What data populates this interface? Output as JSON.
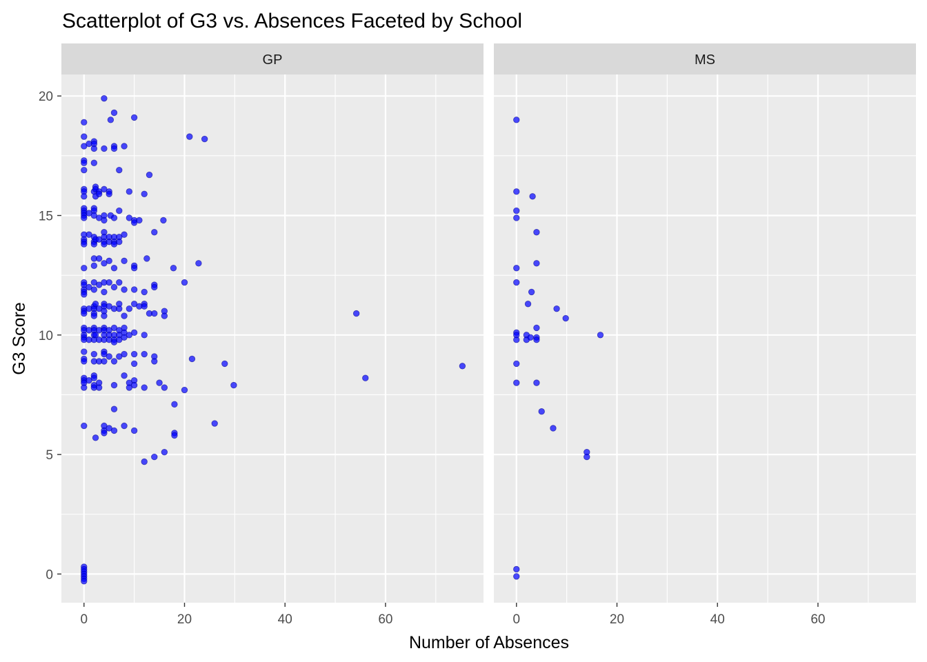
{
  "chart_data": {
    "type": "scatter",
    "title": "Scatterplot of G3 vs. Absences Faceted by School",
    "xlabel": "Number of Absences",
    "ylabel": "G3 Score",
    "xlim": [
      -4.5,
      79.5
    ],
    "ylim": [
      -1.2,
      20.9
    ],
    "x_ticks": [
      0,
      20,
      40,
      60
    ],
    "y_ticks": [
      0,
      5,
      10,
      15,
      20
    ],
    "grid": true,
    "point_color": "#0000FF",
    "point_opacity": 0.7,
    "facets": [
      {
        "name": "GP",
        "points": [
          [
            0,
            18.9
          ],
          [
            0,
            18.3
          ],
          [
            0,
            17.9
          ],
          [
            0,
            17.3
          ],
          [
            0,
            17.2
          ],
          [
            0,
            16.9
          ],
          [
            0,
            16.1
          ],
          [
            0,
            16.0
          ],
          [
            0,
            15.8
          ],
          [
            0,
            15.3
          ],
          [
            0,
            15.2
          ],
          [
            0,
            15.1
          ],
          [
            0,
            15.0
          ],
          [
            0,
            14.9
          ],
          [
            0,
            14.2
          ],
          [
            0,
            14.0
          ],
          [
            0,
            13.9
          ],
          [
            0,
            13.8
          ],
          [
            0,
            12.8
          ],
          [
            0,
            12.2
          ],
          [
            0,
            12.1
          ],
          [
            0,
            11.9
          ],
          [
            0,
            11.8
          ],
          [
            0,
            11.7
          ],
          [
            0,
            11.1
          ],
          [
            0,
            11.0
          ],
          [
            0,
            10.9
          ],
          [
            0,
            10.3
          ],
          [
            0,
            10.2
          ],
          [
            0,
            10.0
          ],
          [
            0,
            9.9
          ],
          [
            0,
            9.8
          ],
          [
            0,
            9.3
          ],
          [
            0,
            9.0
          ],
          [
            0,
            8.9
          ],
          [
            0,
            8.2
          ],
          [
            0,
            8.1
          ],
          [
            0,
            8.0
          ],
          [
            0,
            7.8
          ],
          [
            0,
            6.2
          ],
          [
            0,
            0.3
          ],
          [
            0,
            0.2
          ],
          [
            0,
            0.1
          ],
          [
            0,
            0.0
          ],
          [
            0,
            -0.1
          ],
          [
            0,
            -0.2
          ],
          [
            0,
            -0.3
          ],
          [
            1,
            18.0
          ],
          [
            1,
            15.1
          ],
          [
            1,
            14.2
          ],
          [
            1,
            12.0
          ],
          [
            1,
            11.1
          ],
          [
            1,
            10.2
          ],
          [
            1,
            9.8
          ],
          [
            1,
            8.1
          ],
          [
            2,
            18.1
          ],
          [
            2,
            18.0
          ],
          [
            2,
            17.8
          ],
          [
            2,
            17.2
          ],
          [
            2,
            16.0
          ],
          [
            2,
            15.3
          ],
          [
            2,
            15.2
          ],
          [
            2,
            15.0
          ],
          [
            2,
            14.1
          ],
          [
            2,
            13.9
          ],
          [
            2,
            13.8
          ],
          [
            2,
            13.2
          ],
          [
            2,
            12.9
          ],
          [
            2,
            12.2
          ],
          [
            2,
            11.9
          ],
          [
            2,
            11.2
          ],
          [
            2,
            11.1
          ],
          [
            2,
            10.9
          ],
          [
            2,
            10.8
          ],
          [
            2,
            10.3
          ],
          [
            2,
            10.2
          ],
          [
            2,
            10.0
          ],
          [
            2,
            9.8
          ],
          [
            2,
            9.2
          ],
          [
            2,
            8.9
          ],
          [
            2,
            8.3
          ],
          [
            2,
            8.2
          ],
          [
            2,
            7.9
          ],
          [
            2,
            7.8
          ],
          [
            2.3,
            16.2
          ],
          [
            2.3,
            16.1
          ],
          [
            2.3,
            15.8
          ],
          [
            2.3,
            14.0
          ],
          [
            2.3,
            11.3
          ],
          [
            2.3,
            10.0
          ],
          [
            2.3,
            5.7
          ],
          [
            3,
            16.0
          ],
          [
            3,
            15.9
          ],
          [
            3,
            14.9
          ],
          [
            3,
            14.0
          ],
          [
            3,
            13.2
          ],
          [
            3,
            12.1
          ],
          [
            3,
            11.1
          ],
          [
            3,
            10.2
          ],
          [
            3,
            9.8
          ],
          [
            3,
            8.9
          ],
          [
            3,
            8.0
          ],
          [
            3,
            7.8
          ],
          [
            4,
            19.9
          ],
          [
            4,
            17.8
          ],
          [
            4,
            16.1
          ],
          [
            4,
            15.0
          ],
          [
            4,
            14.8
          ],
          [
            4,
            14.3
          ],
          [
            4,
            14.1
          ],
          [
            4,
            13.9
          ],
          [
            4,
            13.8
          ],
          [
            4,
            13.0
          ],
          [
            4,
            12.2
          ],
          [
            4,
            11.8
          ],
          [
            4,
            11.3
          ],
          [
            4,
            11.2
          ],
          [
            4,
            11.0
          ],
          [
            4,
            10.8
          ],
          [
            4,
            10.3
          ],
          [
            4,
            10.2
          ],
          [
            4,
            10.0
          ],
          [
            4,
            9.8
          ],
          [
            4,
            9.3
          ],
          [
            4,
            9.2
          ],
          [
            4,
            8.9
          ],
          [
            4,
            6.2
          ],
          [
            4,
            6.0
          ],
          [
            4,
            5.9
          ],
          [
            5,
            16.0
          ],
          [
            5,
            15.9
          ],
          [
            5,
            14.1
          ],
          [
            5,
            13.9
          ],
          [
            5,
            13.1
          ],
          [
            5,
            12.2
          ],
          [
            5,
            11.2
          ],
          [
            5,
            10.2
          ],
          [
            5,
            10.0
          ],
          [
            5,
            9.8
          ],
          [
            5,
            9.1
          ],
          [
            5,
            6.1
          ],
          [
            5.3,
            19.0
          ],
          [
            5.3,
            15.0
          ],
          [
            6,
            19.3
          ],
          [
            6,
            17.9
          ],
          [
            6,
            17.8
          ],
          [
            6,
            14.9
          ],
          [
            6,
            14.1
          ],
          [
            6,
            13.9
          ],
          [
            6,
            13.8
          ],
          [
            6,
            12.8
          ],
          [
            6,
            12.0
          ],
          [
            6,
            11.1
          ],
          [
            6,
            10.3
          ],
          [
            6,
            10.0
          ],
          [
            6,
            9.8
          ],
          [
            6,
            9.7
          ],
          [
            6,
            8.9
          ],
          [
            6,
            7.9
          ],
          [
            6,
            6.9
          ],
          [
            6,
            6.0
          ],
          [
            7,
            16.9
          ],
          [
            7,
            15.2
          ],
          [
            7,
            14.1
          ],
          [
            7,
            13.9
          ],
          [
            7,
            12.2
          ],
          [
            7,
            11.3
          ],
          [
            7,
            11.1
          ],
          [
            7,
            10.2
          ],
          [
            7,
            10.0
          ],
          [
            7,
            9.8
          ],
          [
            7,
            9.1
          ],
          [
            8,
            17.9
          ],
          [
            8,
            14.2
          ],
          [
            8,
            13.1
          ],
          [
            8,
            11.9
          ],
          [
            8,
            10.8
          ],
          [
            8,
            10.3
          ],
          [
            8,
            10.1
          ],
          [
            8,
            9.9
          ],
          [
            8,
            9.2
          ],
          [
            8,
            8.3
          ],
          [
            8,
            6.2
          ],
          [
            9,
            16.0
          ],
          [
            9,
            14.9
          ],
          [
            9,
            11.1
          ],
          [
            9,
            10.0
          ],
          [
            9,
            8.0
          ],
          [
            9,
            7.8
          ],
          [
            10,
            19.1
          ],
          [
            10,
            14.8
          ],
          [
            10,
            14.7
          ],
          [
            10,
            12.9
          ],
          [
            10,
            12.8
          ],
          [
            10,
            11.9
          ],
          [
            10,
            11.3
          ],
          [
            10,
            10.1
          ],
          [
            10,
            9.2
          ],
          [
            10,
            8.8
          ],
          [
            10,
            8.1
          ],
          [
            10,
            7.9
          ],
          [
            10,
            6.0
          ],
          [
            11,
            14.8
          ],
          [
            11,
            11.2
          ],
          [
            12,
            15.9
          ],
          [
            12,
            11.8
          ],
          [
            12,
            11.3
          ],
          [
            12,
            11.2
          ],
          [
            12,
            10.0
          ],
          [
            12,
            9.2
          ],
          [
            12,
            7.8
          ],
          [
            12,
            4.7
          ],
          [
            12.5,
            13.2
          ],
          [
            13,
            16.7
          ],
          [
            13,
            10.9
          ],
          [
            14,
            14.3
          ],
          [
            14,
            12.1
          ],
          [
            14,
            12.0
          ],
          [
            14,
            10.9
          ],
          [
            14,
            9.1
          ],
          [
            14,
            8.9
          ],
          [
            14,
            4.9
          ],
          [
            15,
            8.0
          ],
          [
            15.8,
            14.8
          ],
          [
            16,
            11.0
          ],
          [
            16,
            10.8
          ],
          [
            16,
            7.8
          ],
          [
            16,
            5.1
          ],
          [
            17.8,
            12.8
          ],
          [
            18,
            7.1
          ],
          [
            18,
            5.9
          ],
          [
            18,
            5.8
          ],
          [
            20,
            12.2
          ],
          [
            20,
            7.7
          ],
          [
            21,
            18.3
          ],
          [
            21.5,
            9.0
          ],
          [
            22.8,
            13.0
          ],
          [
            24,
            18.2
          ],
          [
            26,
            6.3
          ],
          [
            28,
            8.8
          ],
          [
            29.8,
            7.9
          ],
          [
            54.2,
            10.9
          ],
          [
            56,
            8.2
          ],
          [
            75.3,
            8.7
          ]
        ]
      },
      {
        "name": "MS",
        "points": [
          [
            0,
            19.0
          ],
          [
            0,
            16.0
          ],
          [
            0,
            15.2
          ],
          [
            0,
            14.9
          ],
          [
            0,
            12.8
          ],
          [
            0,
            12.2
          ],
          [
            0,
            10.1
          ],
          [
            0,
            10.0
          ],
          [
            0,
            9.8
          ],
          [
            0,
            8.8
          ],
          [
            0,
            8.0
          ],
          [
            0,
            0.2
          ],
          [
            0,
            -0.1
          ],
          [
            2,
            10.0
          ],
          [
            2,
            9.8
          ],
          [
            2.3,
            11.3
          ],
          [
            2.8,
            9.9
          ],
          [
            3,
            11.8
          ],
          [
            3.2,
            15.8
          ],
          [
            4,
            14.3
          ],
          [
            4,
            13.0
          ],
          [
            4,
            10.3
          ],
          [
            4,
            9.9
          ],
          [
            4,
            9.8
          ],
          [
            4,
            8.0
          ],
          [
            5,
            6.8
          ],
          [
            7.3,
            6.1
          ],
          [
            8,
            11.1
          ],
          [
            9.8,
            10.7
          ],
          [
            14,
            5.1
          ],
          [
            14,
            4.9
          ],
          [
            16.7,
            10.0
          ]
        ]
      }
    ]
  }
}
